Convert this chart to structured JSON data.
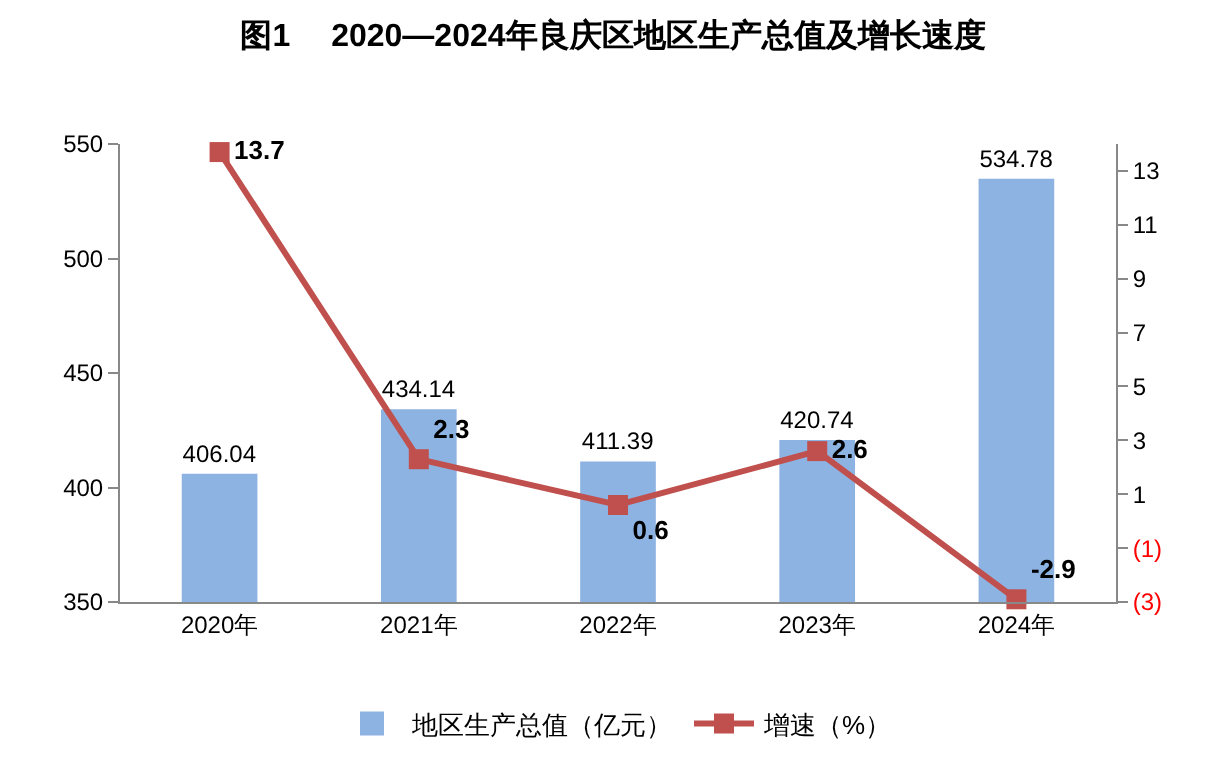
{
  "chart_data": {
    "type": "bar",
    "title": "图1　 2020—2024年良庆区地区生产总值及增长速度",
    "categories": [
      "2020年",
      "2021年",
      "2022年",
      "2023年",
      "2024年"
    ],
    "series": [
      {
        "name": "地区生产总值（亿元）",
        "color": "#8db3e2",
        "values": [
          406.04,
          434.14,
          411.39,
          420.74,
          534.78
        ]
      },
      {
        "name": "增速（%）",
        "type": "line",
        "axis": "y2",
        "color": "#c0504d",
        "marker": "square",
        "values": [
          13.7,
          2.3,
          0.6,
          2.6,
          -2.9
        ]
      }
    ],
    "ylim": [
      350,
      550
    ],
    "yticks": [
      350,
      400,
      450,
      500,
      550
    ],
    "y2lim": [
      -3,
      14
    ],
    "y2ticks": [
      {
        "value": -3,
        "label": "(3)"
      },
      {
        "value": -1,
        "label": "(1)"
      },
      1,
      3,
      5,
      7,
      9,
      11,
      13
    ],
    "data_labels": true,
    "grid": false,
    "legend": "bottom"
  }
}
